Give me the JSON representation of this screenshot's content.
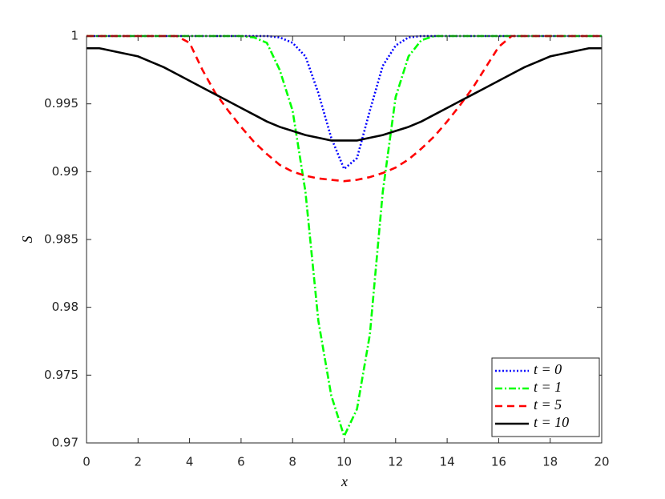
{
  "chart_data": {
    "type": "line",
    "xlabel": "x",
    "ylabel": "S",
    "x": [
      0,
      0.5,
      1,
      1.5,
      2,
      2.5,
      3,
      3.5,
      4,
      4.5,
      5,
      5.5,
      6,
      6.5,
      7,
      7.5,
      8,
      8.5,
      9,
      9.5,
      10,
      10.5,
      11,
      11.5,
      12,
      12.5,
      13,
      13.5,
      14,
      14.5,
      15,
      15.5,
      16,
      16.5,
      17,
      17.5,
      18,
      18.5,
      19,
      19.5,
      20
    ],
    "series": [
      {
        "name": "t = 0",
        "color": "#0000ff",
        "dash": "dotted",
        "values": [
          1,
          1,
          1,
          1,
          1,
          1,
          1,
          1,
          1,
          1,
          1,
          1,
          1,
          1,
          1,
          0.9999,
          0.9995,
          0.9985,
          0.9958,
          0.9925,
          0.9902,
          0.991,
          0.9945,
          0.9978,
          0.9993,
          0.9999,
          1,
          1,
          1,
          1,
          1,
          1,
          1,
          1,
          1,
          1,
          1,
          1,
          1,
          1,
          1
        ]
      },
      {
        "name": "t = 1",
        "color": "#00ff00",
        "dash": "dashdot",
        "values": [
          1,
          1,
          1,
          1,
          1,
          1,
          1,
          1,
          1,
          1,
          1,
          1,
          1,
          0.9999,
          0.9995,
          0.9975,
          0.9945,
          0.9885,
          0.979,
          0.9735,
          0.9705,
          0.9725,
          0.978,
          0.9885,
          0.9955,
          0.9985,
          0.9997,
          1,
          1,
          1,
          1,
          1,
          1,
          1,
          1,
          1,
          1,
          1,
          1,
          1,
          1
        ]
      },
      {
        "name": "t = 5",
        "color": "#ff0000",
        "dash": "dashed",
        "values": [
          1,
          1,
          1,
          1,
          1,
          1,
          1,
          1,
          0.9995,
          0.9975,
          0.9958,
          0.9945,
          0.9933,
          0.9922,
          0.9913,
          0.9905,
          0.99,
          0.9897,
          0.9895,
          0.9894,
          0.9893,
          0.9894,
          0.9896,
          0.9899,
          0.9903,
          0.9909,
          0.9917,
          0.9926,
          0.9937,
          0.9949,
          0.9962,
          0.9977,
          0.9992,
          1,
          1,
          1,
          1,
          1,
          1,
          1,
          1
        ]
      },
      {
        "name": "t = 10",
        "color": "#000000",
        "dash": "solid",
        "values": [
          0.9991,
          0.9991,
          0.9989,
          0.9987,
          0.9985,
          0.9981,
          0.9977,
          0.9972,
          0.9967,
          0.9962,
          0.9957,
          0.9952,
          0.9947,
          0.9942,
          0.9937,
          0.9933,
          0.993,
          0.9927,
          0.9925,
          0.9923,
          0.9923,
          0.9923,
          0.9925,
          0.9927,
          0.993,
          0.9933,
          0.9937,
          0.9942,
          0.9947,
          0.9952,
          0.9957,
          0.9962,
          0.9967,
          0.9972,
          0.9977,
          0.9981,
          0.9985,
          0.9987,
          0.9989,
          0.9991,
          0.9991
        ]
      }
    ],
    "xlim": [
      0,
      20
    ],
    "xticks": [
      0,
      2,
      4,
      6,
      8,
      10,
      12,
      14,
      16,
      18,
      20
    ],
    "ylim": [
      0.97,
      1
    ],
    "yticks": [
      0.97,
      0.975,
      0.98,
      0.985,
      0.99,
      0.995,
      1
    ],
    "grid": false,
    "legend": "lower right"
  }
}
